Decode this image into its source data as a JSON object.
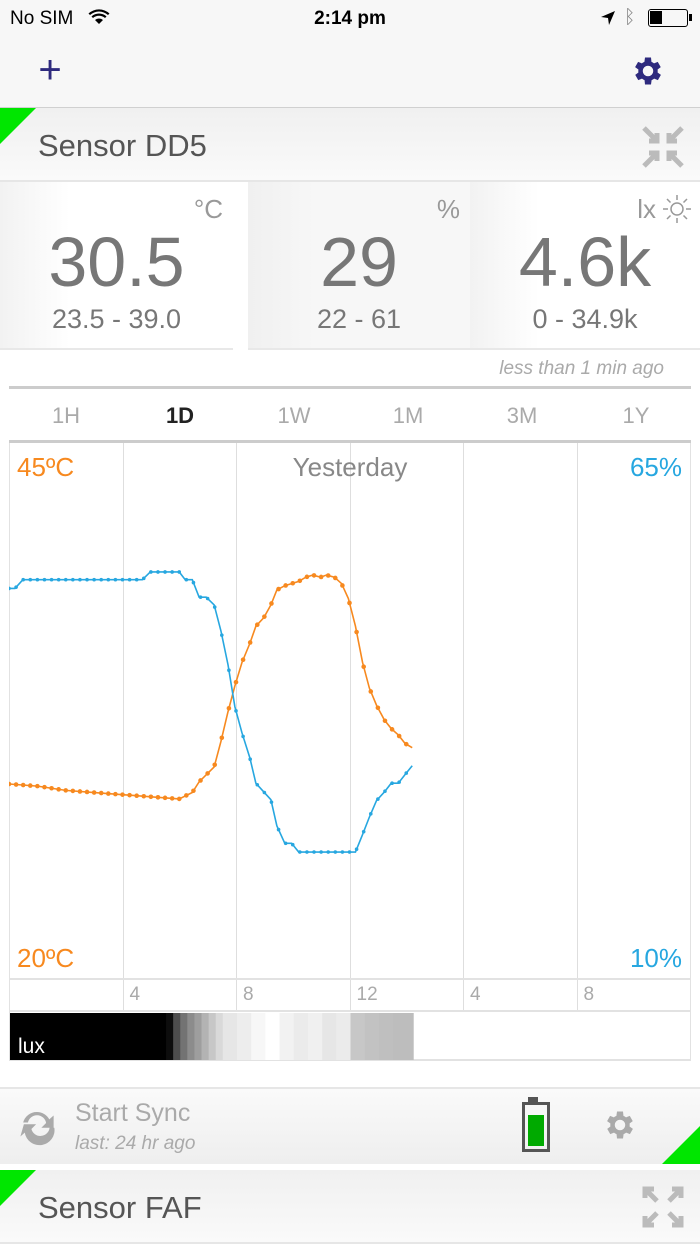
{
  "status_bar": {
    "carrier": "No SIM",
    "time": "2:14 pm"
  },
  "nav": {
    "add_icon": "plus-icon",
    "settings_icon": "gear-icon"
  },
  "colors": {
    "accent": "#2e2a7e",
    "temperature": "#f7891f",
    "humidity": "#27a7e0",
    "status_green": "#00e600"
  },
  "sensor1": {
    "name": "Sensor DD5",
    "readings": [
      {
        "unit": "°C",
        "value": "30.5",
        "range": "23.5 - 39.0"
      },
      {
        "unit": "%",
        "value": "29",
        "range": "22  -  61"
      },
      {
        "unit": "lx",
        "value": "4.6k",
        "range": "0 - 34.9k"
      }
    ],
    "updated": "less than 1 min ago",
    "tabs": [
      {
        "label": "1H"
      },
      {
        "label": "1D",
        "active": true
      },
      {
        "label": "1W"
      },
      {
        "label": "1M"
      },
      {
        "label": "3M"
      },
      {
        "label": "1Y"
      }
    ],
    "footer": {
      "sync_label": "Start Sync",
      "last_sync": "last: 24 hr ago",
      "battery_level": 0.8
    }
  },
  "sensor2": {
    "name": "Sensor FAF"
  },
  "chart_data": {
    "type": "line",
    "title": "Yesterday",
    "x_unit": "hour",
    "xlim": [
      0,
      24
    ],
    "x_ticks": [
      {
        "h": 4,
        "label": "4"
      },
      {
        "h": 8,
        "label": "8"
      },
      {
        "h": 12,
        "label": "12"
      },
      {
        "h": 16,
        "label": "4"
      },
      {
        "h": 20,
        "label": "8"
      }
    ],
    "left_axis": {
      "min_label": "20ºC",
      "max_label": "45ºC",
      "range": [
        20,
        45
      ]
    },
    "right_axis": {
      "min_label": "10%",
      "max_label": "65%",
      "range": [
        10,
        65
      ]
    },
    "series": [
      {
        "name": "temperature",
        "axis": "left",
        "points": [
          [
            0,
            29.1
          ],
          [
            1,
            29.0
          ],
          [
            2,
            28.8
          ],
          [
            3,
            28.7
          ],
          [
            4,
            28.6
          ],
          [
            5,
            28.5
          ],
          [
            6,
            28.4
          ],
          [
            6.46,
            28.7
          ],
          [
            6.7,
            29.2
          ],
          [
            7.23,
            29.9
          ],
          [
            7.47,
            31.1
          ],
          [
            7.72,
            32.5
          ],
          [
            7.96,
            33.7
          ],
          [
            8.21,
            34.8
          ],
          [
            8.49,
            35.7
          ],
          [
            8.7,
            36.5
          ],
          [
            8.98,
            36.9
          ],
          [
            9.23,
            37.5
          ],
          [
            9.44,
            38.2
          ],
          [
            9.72,
            38.4
          ],
          [
            9.96,
            38.5
          ],
          [
            10.21,
            38.6
          ],
          [
            10.46,
            38.8
          ],
          [
            10.7,
            38.9
          ],
          [
            10.98,
            38.8
          ],
          [
            11.19,
            38.9
          ],
          [
            11.47,
            38.8
          ],
          [
            11.72,
            38.5
          ],
          [
            11.96,
            37.8
          ],
          [
            12.21,
            36.5
          ],
          [
            12.46,
            34.8
          ],
          [
            12.7,
            33.6
          ],
          [
            12.95,
            32.8
          ],
          [
            13.23,
            32.1
          ],
          [
            13.47,
            31.7
          ],
          [
            13.72,
            31.4
          ],
          [
            13.96,
            31.0
          ],
          [
            14.21,
            30.8
          ]
        ]
      },
      {
        "name": "humidity",
        "axis": "right",
        "points": [
          [
            0,
            50.2
          ],
          [
            0.21,
            50.2
          ],
          [
            0.49,
            51.1
          ],
          [
            4.7,
            51.1
          ],
          [
            4.98,
            51.9
          ],
          [
            6.0,
            51.9
          ],
          [
            6.21,
            51.1
          ],
          [
            6.46,
            51.1
          ],
          [
            6.7,
            49.3
          ],
          [
            6.95,
            49.3
          ],
          [
            7.23,
            48.5
          ],
          [
            7.47,
            45.8
          ],
          [
            7.72,
            42.3
          ],
          [
            7.96,
            38.0
          ],
          [
            8.21,
            35.3
          ],
          [
            8.49,
            32.7
          ],
          [
            8.7,
            30.1
          ],
          [
            8.98,
            29.2
          ],
          [
            9.23,
            28.4
          ],
          [
            9.44,
            25.7
          ],
          [
            9.72,
            23.9
          ],
          [
            9.96,
            23.9
          ],
          [
            10.21,
            23.0
          ],
          [
            12.21,
            23.0
          ],
          [
            12.46,
            24.8
          ],
          [
            12.7,
            26.6
          ],
          [
            12.95,
            28.3
          ],
          [
            13.23,
            29.2
          ],
          [
            13.47,
            30.1
          ],
          [
            13.72,
            30.1
          ],
          [
            13.96,
            31.0
          ],
          [
            14.21,
            31.9
          ]
        ]
      }
    ],
    "lux": {
      "label": "lux",
      "end_hour": 14.21,
      "levels": [
        [
          0,
          0
        ],
        [
          5.5,
          0.05
        ],
        [
          5.75,
          0.3
        ],
        [
          6.0,
          0.45
        ],
        [
          6.25,
          0.55
        ],
        [
          6.5,
          0.62
        ],
        [
          6.75,
          0.7
        ],
        [
          7.0,
          0.78
        ],
        [
          7.25,
          0.85
        ],
        [
          7.5,
          0.9
        ],
        [
          8.0,
          0.93
        ],
        [
          8.5,
          0.97
        ],
        [
          9.0,
          1.0
        ],
        [
          9.5,
          0.95
        ],
        [
          10.0,
          0.92
        ],
        [
          10.5,
          0.94
        ],
        [
          11.0,
          0.9
        ],
        [
          11.5,
          0.92
        ],
        [
          12.0,
          0.78
        ],
        [
          12.5,
          0.76
        ],
        [
          13.0,
          0.75
        ],
        [
          13.5,
          0.74
        ]
      ]
    }
  },
  "footer_icons": {
    "sync": "sync-icon",
    "battery": "battery-icon",
    "settings": "gear-icon"
  }
}
